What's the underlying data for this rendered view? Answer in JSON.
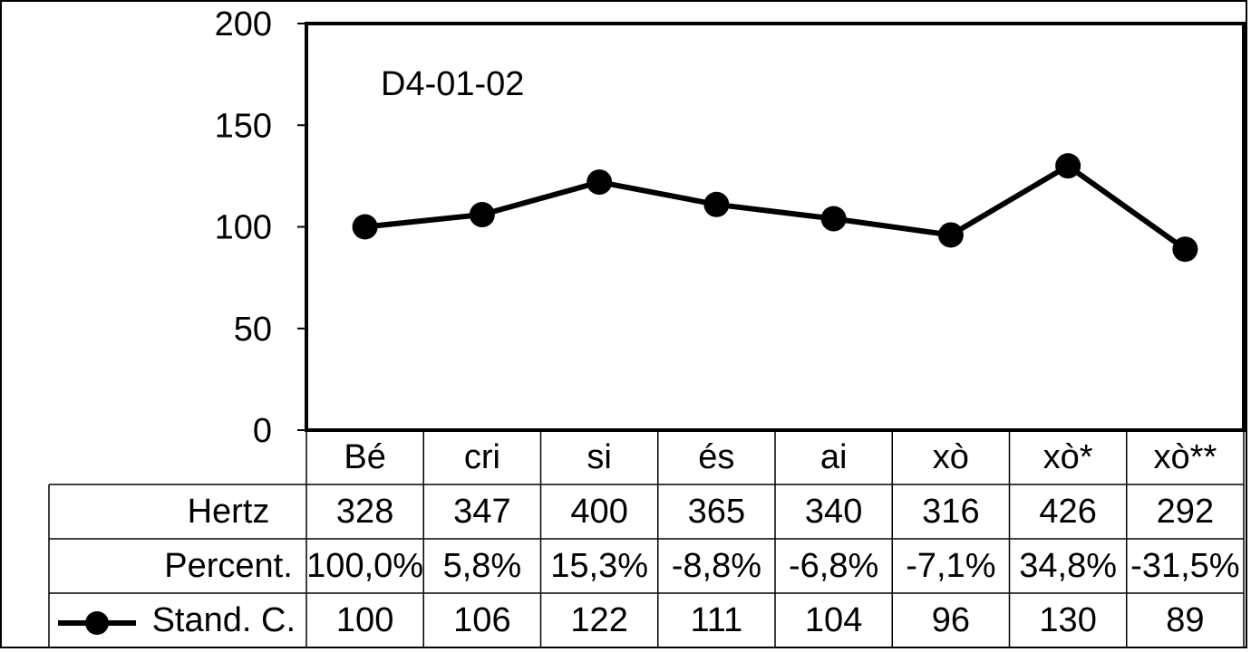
{
  "chart_data": {
    "type": "line",
    "title": "D4-01-02",
    "categories": [
      "Bé",
      "cri",
      "si",
      "és",
      "ai",
      "xò",
      "xò*",
      "xò**"
    ],
    "series": [
      {
        "name": "Stand. C.",
        "values": [
          100,
          106,
          122,
          111,
          104,
          96,
          130,
          89
        ]
      }
    ],
    "ylim": [
      0,
      200
    ],
    "yticks": [
      "0",
      "50",
      "100",
      "150",
      "200"
    ],
    "xlabel": "",
    "ylabel": "",
    "grid": false,
    "legend": "data-table-row",
    "colors": {
      "line": "#000000",
      "background": "#ffffff"
    }
  },
  "table": {
    "rows": [
      {
        "label": "Hertz",
        "values": [
          "328",
          "347",
          "400",
          "365",
          "340",
          "316",
          "426",
          "292"
        ]
      },
      {
        "label": "Percent.",
        "values": [
          "100,0%",
          "5,8%",
          "15,3%",
          "-8,8%",
          "-6,8%",
          "-7,1%",
          "34,8%",
          "-31,5%"
        ]
      },
      {
        "label": "Stand. C.",
        "values": [
          "100",
          "106",
          "122",
          "111",
          "104",
          "96",
          "130",
          "89"
        ]
      }
    ]
  }
}
